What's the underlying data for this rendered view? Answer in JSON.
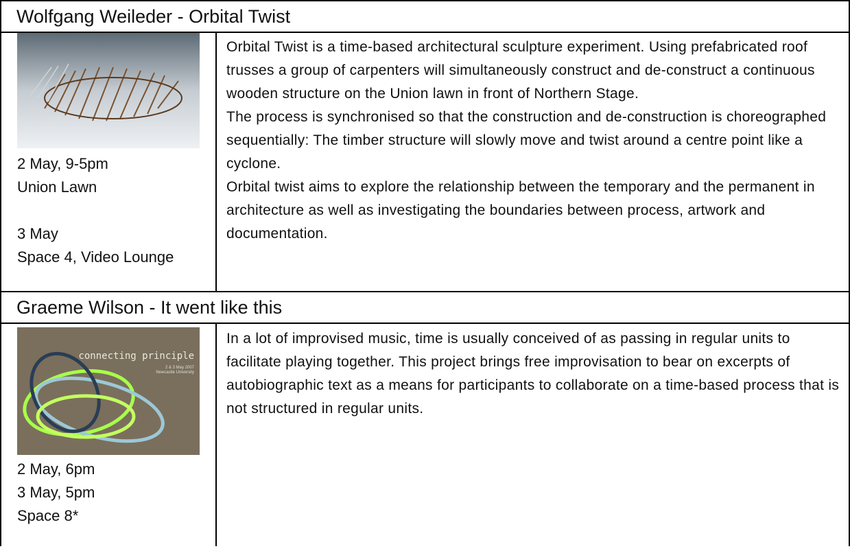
{
  "entries": [
    {
      "title": "Wolfgang Weileder  - Orbital Twist",
      "schedule": [
        [
          "2 May, 9-5pm",
          "Union Lawn"
        ],
        [
          "3 May",
          "Space 4, Video Lounge"
        ]
      ],
      "description": [
        "Orbital Twist is a time-based architectural sculpture experiment.  Using prefabricated roof trusses a group of carpenters will simultaneously construct and de-construct a continuous wooden structure on the Union lawn in front of Northern Stage.",
        "The process is synchronised so that the construction and de-construction is choreographed sequentially: The timber structure will slowly move and twist around a centre point like a cyclone.",
        "Orbital twist aims to explore the relationship between the temporary and the permanent in architecture as well as investigating the boundaries between process, artwork and documentation."
      ]
    },
    {
      "title": "Graeme Wilson - It went like this",
      "image_text": {
        "heading": "connecting principle",
        "date": "2 & 3 May 2007",
        "place": "Newcastle University"
      },
      "schedule": [
        [
          "2 May, 6pm",
          "3 May, 5pm",
          "Space 8*"
        ]
      ],
      "description": [
        "In a lot of improvised music, time is usually conceived of as passing in regular units to facilitate playing together. This project brings free improvisation to bear on excerpts of autobiographic text as a means for participants to collaborate on a time-based process that is not structured in regular units."
      ]
    }
  ]
}
